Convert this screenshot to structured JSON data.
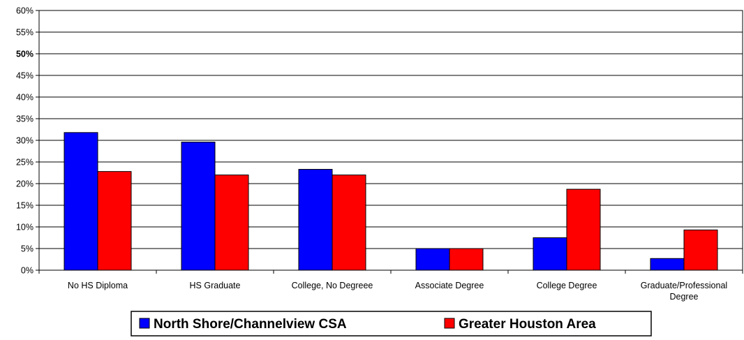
{
  "chart_data": {
    "type": "bar",
    "title": "",
    "xlabel": "",
    "ylabel": "",
    "categories": [
      [
        "No HS Diploma"
      ],
      [
        "HS Graduate"
      ],
      [
        "College, No Degreee"
      ],
      [
        "Associate Degree"
      ],
      [
        "College Degree"
      ],
      [
        "Graduate/Professional",
        "Degree"
      ]
    ],
    "series": [
      {
        "name": "North Shore/Channelview CSA",
        "color": "#0000ff",
        "values": [
          31.8,
          29.6,
          23.3,
          5.0,
          7.5,
          2.7
        ]
      },
      {
        "name": "Greater Houston Area",
        "color": "#ff0000",
        "values": [
          22.8,
          22.0,
          22.0,
          5.0,
          18.7,
          9.3
        ]
      }
    ],
    "ylim": [
      0,
      60
    ],
    "yticks": [
      "0%",
      "5%",
      "10%",
      "15%",
      "20%",
      "25%",
      "30%",
      "35%",
      "40%",
      "45%",
      "50%",
      "55%",
      "60%"
    ],
    "bold_tick": "50%",
    "grid": true,
    "legend_position": "bottom"
  }
}
